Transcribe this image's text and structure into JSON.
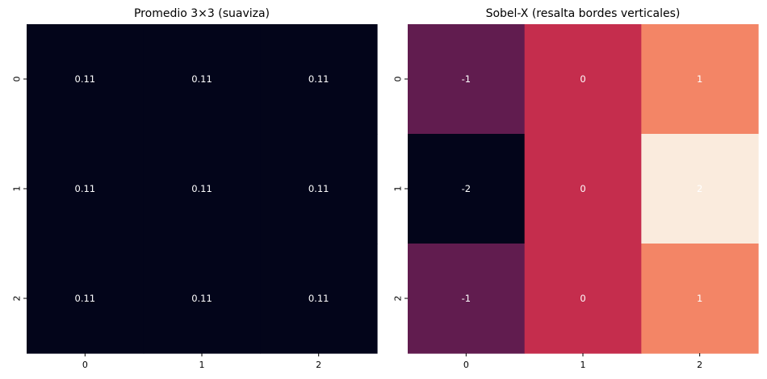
{
  "chart_data": [
    {
      "type": "heatmap",
      "title": "Promedio 3×3 (suaviza)",
      "x_ticks": [
        "0",
        "1",
        "2"
      ],
      "y_ticks": [
        "0",
        "1",
        "2"
      ],
      "values": [
        [
          0.11,
          0.11,
          0.11
        ],
        [
          0.11,
          0.11,
          0.11
        ],
        [
          0.11,
          0.11,
          0.11
        ]
      ],
      "annotations": [
        [
          "0.11",
          "0.11",
          "0.11"
        ],
        [
          "0.11",
          "0.11",
          "0.11"
        ],
        [
          "0.11",
          "0.11",
          "0.11"
        ]
      ],
      "colormap": "rocket",
      "colorbar": false
    },
    {
      "type": "heatmap",
      "title": "Sobel-X (resalta bordes verticales)",
      "x_ticks": [
        "0",
        "1",
        "2"
      ],
      "y_ticks": [
        "0",
        "1",
        "2"
      ],
      "values": [
        [
          -1,
          0,
          1
        ],
        [
          -2,
          0,
          2
        ],
        [
          -1,
          0,
          1
        ]
      ],
      "annotations": [
        [
          "-1",
          "0",
          "1"
        ],
        [
          "-2",
          "0",
          "2"
        ],
        [
          "-1",
          "0",
          "1"
        ]
      ],
      "colormap": "rocket",
      "colorbar": false
    }
  ],
  "colors": {
    "rocket_stops": [
      "#03051a",
      "#4c1d4b",
      "#a11a5b",
      "#e83f3f",
      "#f69c73",
      "#faebdd"
    ]
  }
}
